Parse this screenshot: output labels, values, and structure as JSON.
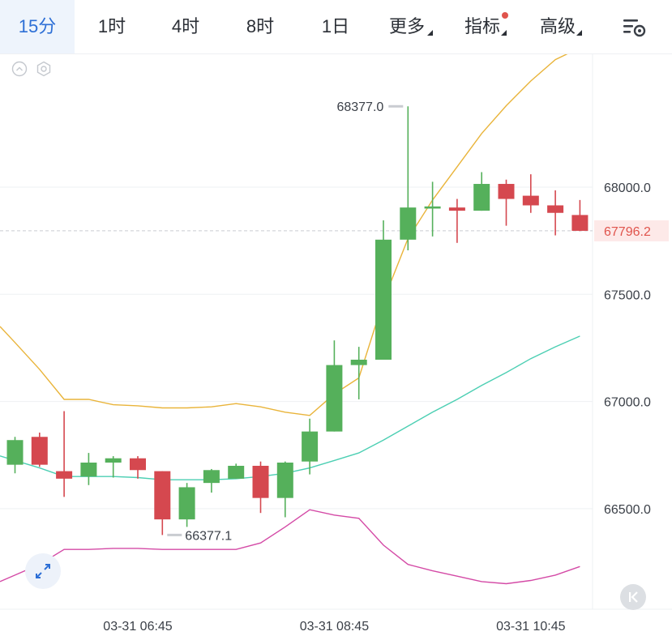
{
  "tabs": [
    {
      "label": "15分",
      "active": true
    },
    {
      "label": "1时",
      "active": false
    },
    {
      "label": "4时",
      "active": false
    },
    {
      "label": "8时",
      "active": false
    },
    {
      "label": "1日",
      "active": false
    },
    {
      "label": "更多",
      "active": false,
      "dropdown": true
    },
    {
      "label": "指标",
      "active": false,
      "dropdown": true,
      "badge": true
    },
    {
      "label": "高级",
      "active": false,
      "dropdown": true
    }
  ],
  "icons": {
    "settings": "chart-settings-icon",
    "collapse": "chevron-up-circle-icon",
    "indicator_settings": "hexagon-gear-icon",
    "expand": "expand-arrows-icon",
    "scroll_end": "skip-to-latest-icon"
  },
  "colors": {
    "up": "#55b05b",
    "down": "#d5484f",
    "ma_upper": "#e9b43a",
    "ma_mid": "#4ccfb3",
    "ma_lower": "#d44aa6",
    "price_tag": "#e0544c",
    "accent": "#2d6fd6"
  },
  "chart_data": {
    "type": "candlestick",
    "interval": "15分",
    "y_ticks": [
      "68000.0",
      "67500.0",
      "67000.0",
      "66500.0"
    ],
    "y_tick_values": [
      68000,
      67500,
      67000,
      66500
    ],
    "x_ticks": [
      "03-31 06:45",
      "03-31 08:45",
      "03-31 10:45"
    ],
    "x_tick_index": [
      5,
      13,
      21
    ],
    "last_price": "67796.2",
    "last_price_value": 67796.2,
    "high_label": "68377.0",
    "high_value": 68377.0,
    "high_index": 16,
    "low_label": "66377.1",
    "low_value": 66377.1,
    "low_index": 6,
    "candles": [
      {
        "o": 66705,
        "h": 66835,
        "l": 66665,
        "c": 66820
      },
      {
        "o": 66835,
        "h": 66855,
        "l": 66695,
        "c": 66705
      },
      {
        "o": 66675,
        "h": 66955,
        "l": 66555,
        "c": 66640
      },
      {
        "o": 66650,
        "h": 66760,
        "l": 66610,
        "c": 66715
      },
      {
        "o": 66715,
        "h": 66745,
        "l": 66645,
        "c": 66735
      },
      {
        "o": 66735,
        "h": 66745,
        "l": 66640,
        "c": 66680
      },
      {
        "o": 66675,
        "h": 66675,
        "l": 66377.1,
        "c": 66450
      },
      {
        "o": 66450,
        "h": 66620,
        "l": 66415,
        "c": 66600
      },
      {
        "o": 66620,
        "h": 66685,
        "l": 66575,
        "c": 66680
      },
      {
        "o": 66640,
        "h": 66710,
        "l": 66640,
        "c": 66700
      },
      {
        "o": 66700,
        "h": 66720,
        "l": 66480,
        "c": 66550
      },
      {
        "o": 66550,
        "h": 66720,
        "l": 66460,
        "c": 66715
      },
      {
        "o": 66720,
        "h": 66920,
        "l": 66660,
        "c": 66860
      },
      {
        "o": 66860,
        "h": 67285,
        "l": 66860,
        "c": 67170
      },
      {
        "o": 67170,
        "h": 67255,
        "l": 67010,
        "c": 67195
      },
      {
        "o": 67195,
        "h": 67845,
        "l": 67195,
        "c": 67755
      },
      {
        "o": 67755,
        "h": 68377.0,
        "l": 67705,
        "c": 67905
      },
      {
        "o": 67900,
        "h": 68025,
        "l": 67770,
        "c": 67910
      },
      {
        "o": 67905,
        "h": 67945,
        "l": 67740,
        "c": 67890
      },
      {
        "o": 67890,
        "h": 68070,
        "l": 67890,
        "c": 68015
      },
      {
        "o": 68015,
        "h": 68035,
        "l": 67820,
        "c": 67945
      },
      {
        "o": 67960,
        "h": 68060,
        "l": 67880,
        "c": 67915
      },
      {
        "o": 67915,
        "h": 67985,
        "l": 67775,
        "c": 67880
      },
      {
        "o": 67870,
        "h": 67940,
        "l": 67795,
        "c": 67796.2
      }
    ],
    "series": [
      {
        "color": "#e9b43a",
        "values": [
          67275,
          67150,
          67010,
          67010,
          66985,
          66980,
          66970,
          66970,
          66975,
          66990,
          66975,
          66950,
          66935,
          67035,
          67110,
          67470,
          67760,
          67940,
          68095,
          68250,
          68380,
          68495,
          68595,
          68650
        ]
      },
      {
        "color": "#4ccfb3",
        "values": [
          66725,
          66690,
          66650,
          66650,
          66650,
          66645,
          66635,
          66635,
          66635,
          66640,
          66650,
          66665,
          66690,
          66725,
          66760,
          66820,
          66885,
          66950,
          67010,
          67075,
          67135,
          67200,
          67255,
          67305
        ]
      },
      {
        "color": "#d44aa6",
        "values": [
          66190,
          66240,
          66310,
          66310,
          66315,
          66315,
          66310,
          66310,
          66310,
          66310,
          66340,
          66415,
          66495,
          66470,
          66455,
          66330,
          66240,
          66210,
          66185,
          66160,
          66150,
          66165,
          66190,
          66230
        ]
      }
    ]
  }
}
